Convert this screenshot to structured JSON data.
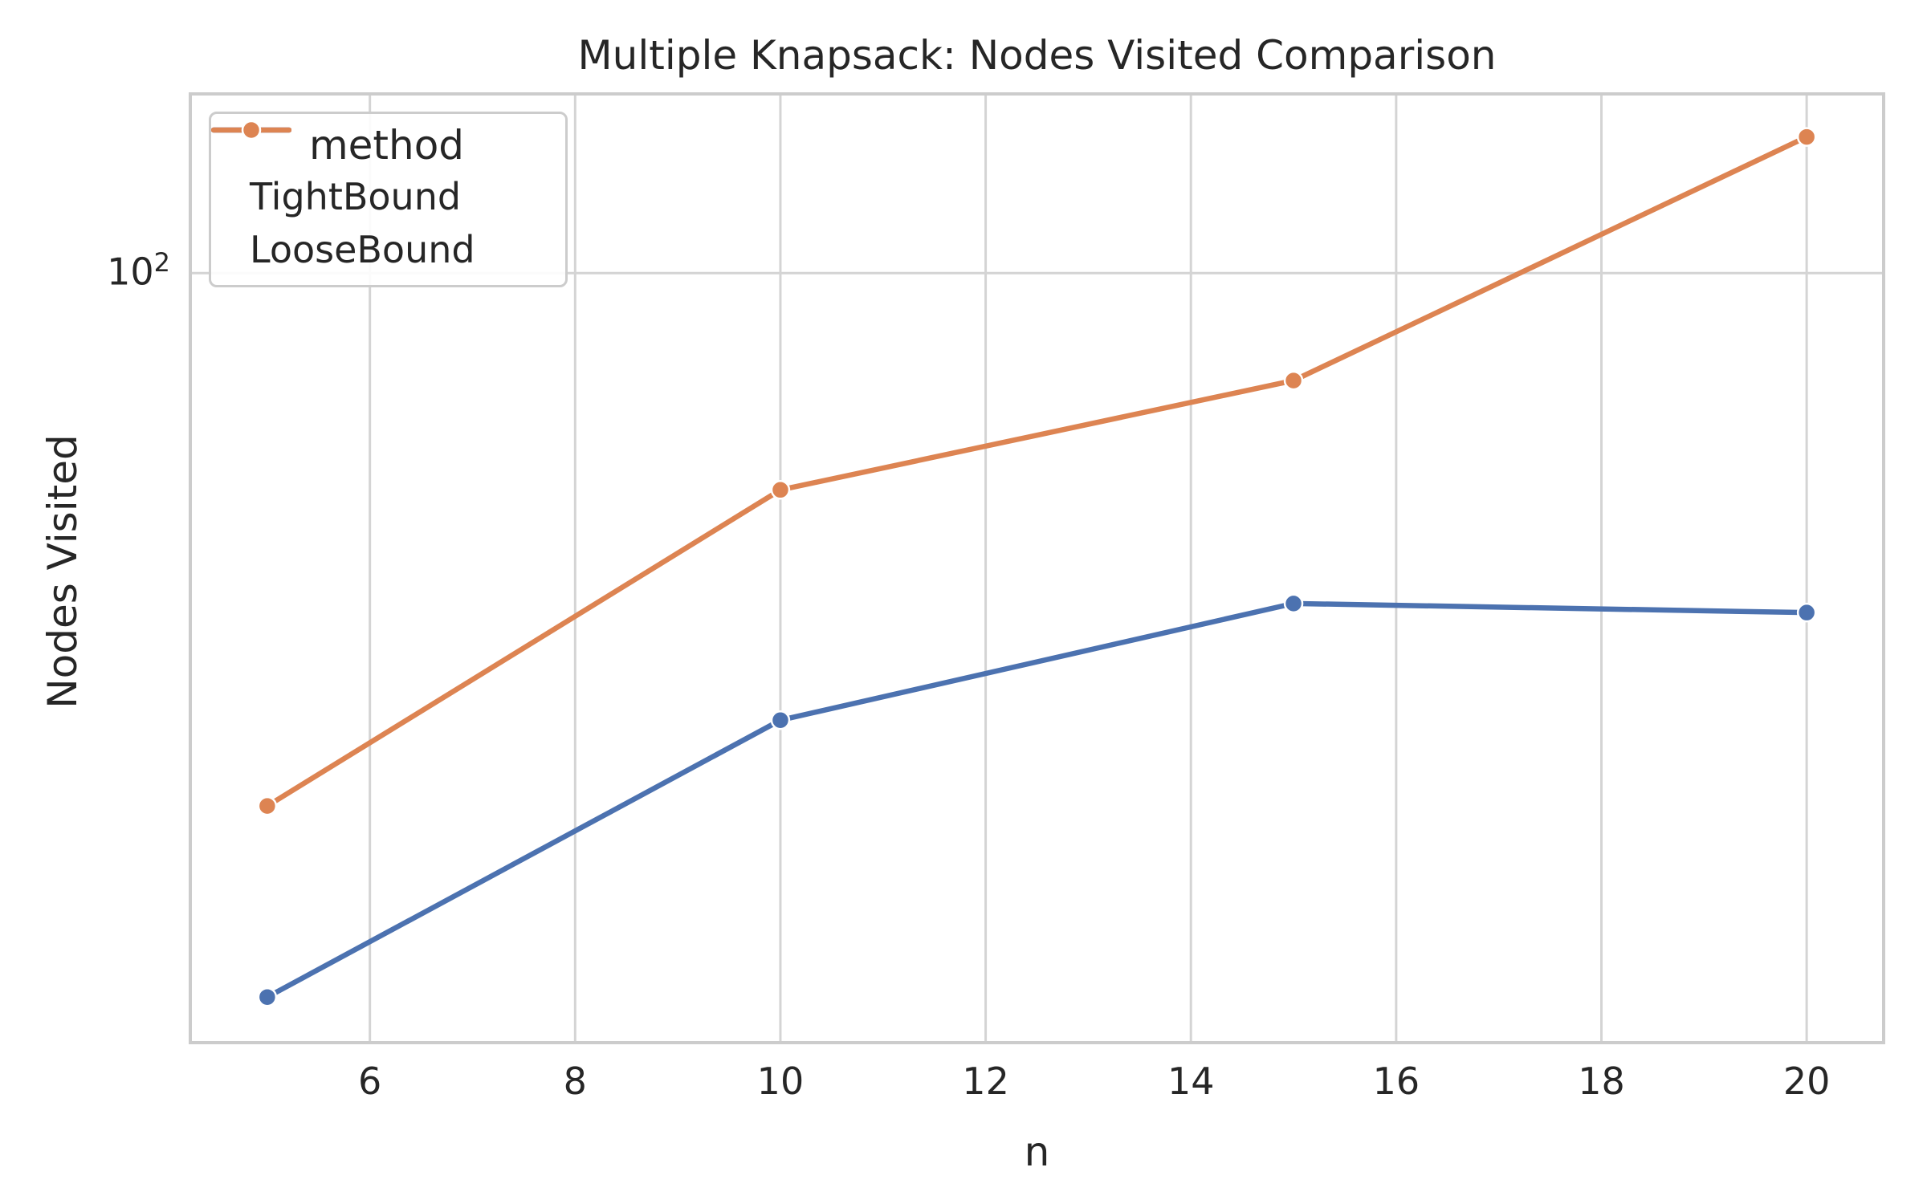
{
  "chart_data": {
    "type": "line",
    "title": "Multiple Knapsack: Nodes Visited Comparison",
    "xlabel": "n",
    "ylabel": "Nodes Visited",
    "x": [
      5,
      10,
      15,
      20
    ],
    "series": [
      {
        "name": "TightBound",
        "color": "#4C72B0",
        "values": [
          12,
          27,
          38,
          37
        ]
      },
      {
        "name": "LooseBound",
        "color": "#DD8452",
        "values": [
          21,
          53,
          73,
          149
        ]
      }
    ],
    "legend": {
      "title": "method",
      "position": "upper left"
    },
    "x_ticks": [
      6,
      8,
      10,
      12,
      14,
      16,
      18,
      20
    ],
    "y_scale": "log",
    "y_tick": {
      "base": "10",
      "exponent": "2",
      "value": 100
    },
    "xlim": [
      4.25,
      20.75
    ],
    "ylim": [
      10.5,
      169
    ],
    "grid": true,
    "style": {
      "grid_color": "#d4d4d4",
      "spine_color": "#cccccc",
      "text_color": "#262626",
      "background": "#ffffff"
    }
  }
}
